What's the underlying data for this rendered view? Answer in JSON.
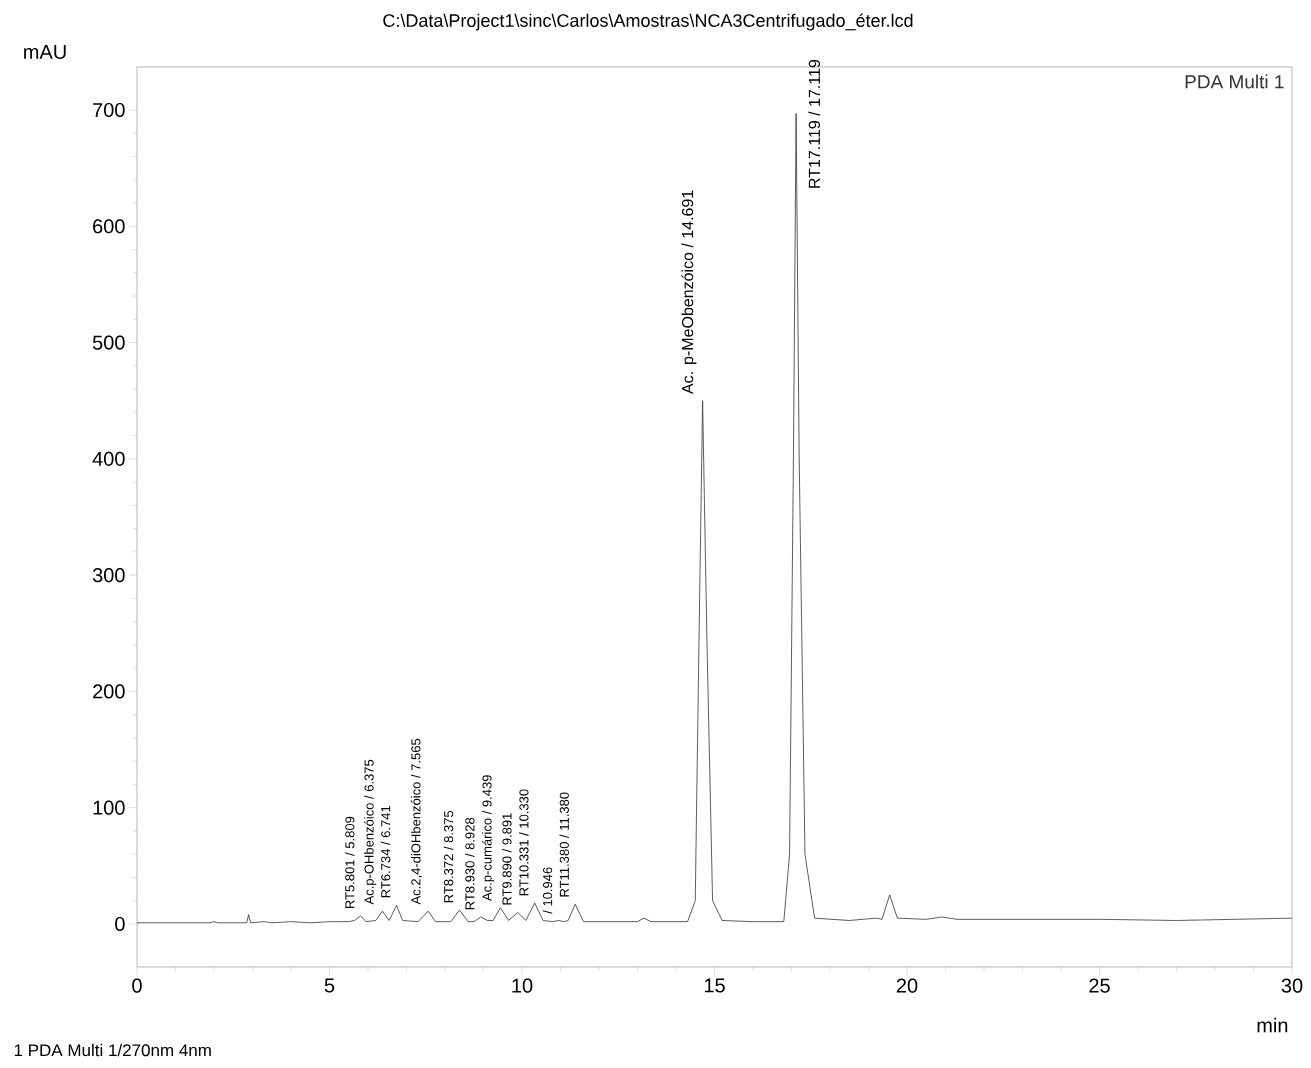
{
  "chart_data": {
    "type": "line",
    "title": "C:\\Data\\Project1\\sinc\\Carlos\\Amostras\\NCA3Centrifugado_éter.lcd",
    "xlabel": "min",
    "ylabel": "mAU",
    "x": [
      0,
      1.9,
      2.0,
      2.1,
      2.85,
      2.9,
      2.95,
      3.3,
      3.5,
      4.0,
      4.5,
      5.0,
      5.5,
      5.65,
      5.809,
      5.95,
      6.2,
      6.375,
      6.55,
      6.741,
      6.9,
      7.3,
      7.565,
      7.75,
      8.15,
      8.375,
      8.6,
      8.75,
      8.928,
      9.1,
      9.25,
      9.439,
      9.65,
      9.891,
      10.1,
      10.331,
      10.55,
      10.8,
      10.946,
      11.1,
      11.2,
      11.38,
      11.6,
      12.0,
      13.0,
      13.17,
      13.35,
      14.3,
      14.5,
      14.6,
      14.691,
      14.8,
      14.95,
      15.2,
      16.0,
      16.8,
      16.95,
      17.05,
      17.119,
      17.2,
      17.35,
      17.6,
      18.5,
      19.2,
      19.35,
      19.55,
      19.75,
      20.5,
      20.9,
      21.3,
      23,
      25,
      27,
      30
    ],
    "series": [
      {
        "name": "PDA Multi 1",
        "color": "#333333",
        "values": [
          1,
          1,
          2,
          1,
          1,
          8,
          1,
          2,
          1,
          2,
          1,
          2,
          2,
          3,
          7,
          2,
          3,
          11,
          3,
          16,
          3,
          2,
          11,
          2,
          2,
          12,
          2,
          2,
          6,
          3,
          3,
          14,
          3,
          10,
          3,
          18,
          3,
          2,
          3,
          2,
          3,
          17,
          2,
          2,
          2,
          5,
          2,
          2,
          20,
          250,
          450,
          250,
          20,
          3,
          2,
          2,
          60,
          400,
          697,
          400,
          60,
          5,
          3,
          5,
          4,
          25,
          5,
          4,
          6,
          4,
          4,
          4,
          3,
          5
        ]
      }
    ],
    "xlim": [
      0,
      30
    ],
    "ylim": [
      -37,
      737
    ],
    "xticks": [
      0,
      5,
      10,
      15,
      20,
      25,
      30
    ],
    "yticks": [
      0,
      100,
      200,
      300,
      400,
      500,
      600,
      700
    ],
    "legend": "top right",
    "annotations": [
      {
        "text": "RT5.801 / 5.809",
        "x": 5.809,
        "y": 7
      },
      {
        "text": "Ac.p-OHbenzóico / 6.375",
        "x": 6.375,
        "y": 11
      },
      {
        "text": "RT6.734 / 6.741",
        "x": 6.741,
        "y": 16
      },
      {
        "text": "Ac.2,4-diOHbenzóico / 7.565",
        "x": 7.565,
        "y": 11
      },
      {
        "text": "RT8.372 / 8.375",
        "x": 8.375,
        "y": 12
      },
      {
        "text": "RT8.930 / 8.928",
        "x": 8.928,
        "y": 6
      },
      {
        "text": "Ac.p-cumárico / 9.439",
        "x": 9.439,
        "y": 14
      },
      {
        "text": "RT9.890 / 9.891",
        "x": 9.891,
        "y": 10
      },
      {
        "text": "RT10.331 / 10.330",
        "x": 10.331,
        "y": 18
      },
      {
        "text": "/ 10.946",
        "x": 10.946,
        "y": 3
      },
      {
        "text": "RT11.380 / 11.380",
        "x": 11.38,
        "y": 17
      },
      {
        "text": "Ac. p-MeObenzóico / 14.691",
        "x": 14.691,
        "y": 450
      },
      {
        "text": "RT17.119 / 17.119",
        "x": 17.119,
        "y": 697
      },
      "1  PDA Multi 1/270nm 4nm"
    ]
  }
}
